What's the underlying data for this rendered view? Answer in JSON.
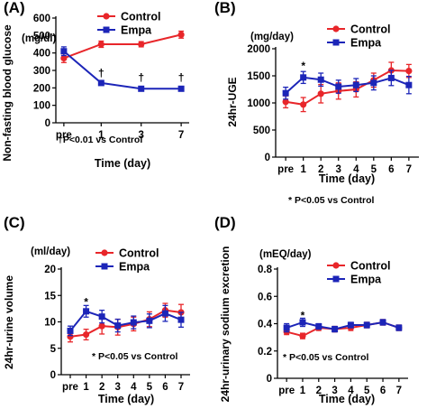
{
  "colors": {
    "control": "#e8262a",
    "empa": "#1c25b8",
    "axis": "#000000"
  },
  "chart_data": [
    {
      "type": "line",
      "panel_label": "(A)",
      "ylabel": "Non-fasting blood glucose",
      "unit": "(mg/dl)",
      "xlabel": "Time (day)",
      "x": [
        "pre",
        "1",
        "3",
        "7"
      ],
      "ylim": [
        0,
        600
      ],
      "yticks": [
        0,
        100,
        200,
        300,
        400,
        500,
        600
      ],
      "series": [
        {
          "name": "Control",
          "color": "#e8262a",
          "marker": "circle",
          "values": [
            370,
            450,
            450,
            505
          ],
          "err": [
            25,
            18,
            15,
            20
          ]
        },
        {
          "name": "Empa",
          "color": "#1c25b8",
          "marker": "square",
          "values": [
            410,
            228,
            195,
            195
          ],
          "err": [
            25,
            8,
            5,
            5
          ]
        }
      ],
      "legend": "top-right",
      "annotations": [
        {
          "text": "†",
          "x_index": 1,
          "y": 285
        },
        {
          "text": "†",
          "x_index": 2,
          "y": 258
        },
        {
          "text": "†",
          "x_index": 3,
          "y": 258
        }
      ],
      "note": "†P<0.01 vs Control"
    },
    {
      "type": "line",
      "panel_label": "(B)",
      "ylabel": "24hr-UGE",
      "unit": "(mg/day)",
      "xlabel": "Time (day)",
      "x": [
        "pre",
        "1",
        "2",
        "3",
        "4",
        "5",
        "6",
        "7"
      ],
      "ylim": [
        0,
        2000
      ],
      "yticks": [
        0,
        500,
        1000,
        1500,
        2000
      ],
      "series": [
        {
          "name": "Control",
          "color": "#e8262a",
          "marker": "circle",
          "values": [
            1020,
            970,
            1170,
            1220,
            1250,
            1420,
            1600,
            1590
          ],
          "err": [
            110,
            130,
            170,
            150,
            140,
            130,
            150,
            120
          ]
        },
        {
          "name": "Empa",
          "color": "#1c25b8",
          "marker": "square",
          "values": [
            1180,
            1470,
            1430,
            1300,
            1330,
            1370,
            1460,
            1330
          ],
          "err": [
            110,
            110,
            120,
            120,
            120,
            130,
            140,
            160
          ]
        }
      ],
      "legend": "top-right",
      "annotations": [
        {
          "text": "*",
          "x_index": 1,
          "y": 1680
        }
      ],
      "note": "* P<0.05 vs Control"
    },
    {
      "type": "line",
      "panel_label": "(C)",
      "ylabel": "24hr-urine volume",
      "unit": "(ml/day)",
      "xlabel": "Time (day)",
      "x": [
        "pre",
        "1",
        "2",
        "3",
        "4",
        "5",
        "6",
        "7"
      ],
      "ylim": [
        0,
        20
      ],
      "yticks": [
        0,
        5,
        10,
        15,
        20
      ],
      "series": [
        {
          "name": "Control",
          "color": "#e8262a",
          "marker": "circle",
          "values": [
            7.2,
            7.6,
            9.2,
            9.0,
            9.6,
            10.5,
            12.2,
            11.8
          ],
          "err": [
            1.0,
            1.0,
            1.5,
            1.5,
            1.3,
            1.4,
            1.3,
            1.5
          ]
        },
        {
          "name": "Empa",
          "color": "#1c25b8",
          "marker": "square",
          "values": [
            8.3,
            12.0,
            11.0,
            9.3,
            9.9,
            10.2,
            11.6,
            10.4
          ],
          "err": [
            0.9,
            1.1,
            1.2,
            1.2,
            1.2,
            1.3,
            1.5,
            1.4
          ]
        }
      ],
      "legend": "top-right",
      "annotations": [
        {
          "text": "*",
          "x_index": 1,
          "y": 13.8
        }
      ],
      "note": "* P<0.05 vs Control"
    },
    {
      "type": "line",
      "panel_label": "(D)",
      "ylabel": "24hr-urinary sodium excretion",
      "unit": "(mEQ/day)",
      "xlabel": "Time (day)",
      "x": [
        "pre",
        "1",
        "2",
        "3",
        "4",
        "5",
        "6",
        "7"
      ],
      "ylim": [
        0,
        0.8
      ],
      "yticks": [
        "0",
        "0.2",
        "0.4",
        "0.6",
        "0.8"
      ],
      "series": [
        {
          "name": "Control",
          "color": "#e8262a",
          "marker": "circle",
          "values": [
            0.34,
            0.31,
            0.37,
            0.36,
            0.37,
            0.39,
            0.41,
            0.37
          ],
          "err": [
            0.02,
            0.02,
            0.02,
            0.02,
            0.02,
            0.02,
            0.02,
            0.02
          ]
        },
        {
          "name": "Empa",
          "color": "#1c25b8",
          "marker": "square",
          "values": [
            0.37,
            0.41,
            0.38,
            0.36,
            0.39,
            0.39,
            0.41,
            0.37
          ],
          "err": [
            0.03,
            0.03,
            0.02,
            0.02,
            0.02,
            0.02,
            0.02,
            0.02
          ]
        }
      ],
      "legend": "top-right",
      "annotations": [
        {
          "text": "*",
          "x_index": 1,
          "y": 0.46
        }
      ],
      "note": "* P<0.05 vs Control"
    }
  ]
}
